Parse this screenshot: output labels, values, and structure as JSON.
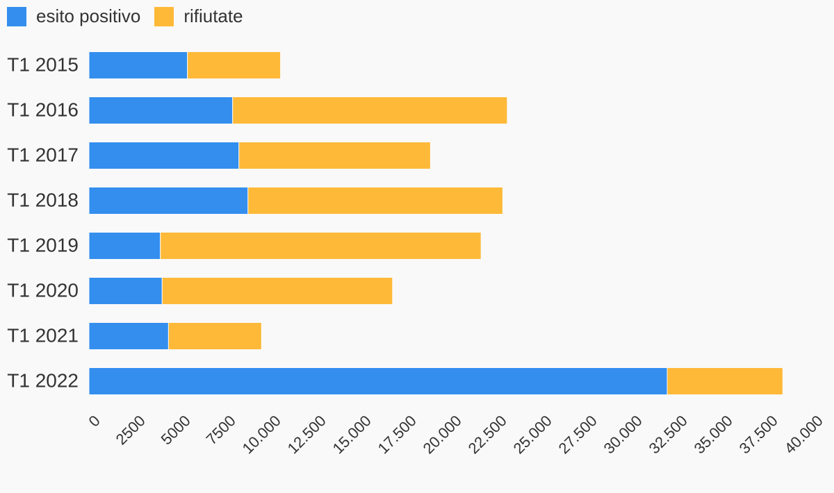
{
  "chart_data": {
    "type": "bar",
    "orientation": "horizontal",
    "stacked": true,
    "categories": [
      "T1 2015",
      "T1 2016",
      "T1 2017",
      "T1 2018",
      "T1 2019",
      "T1 2020",
      "T1 2021",
      "T1 2022"
    ],
    "series": [
      {
        "name": "esito positivo",
        "color": "#338eee",
        "values": [
          5450,
          7950,
          8300,
          8800,
          3950,
          4050,
          4400,
          32000
        ]
      },
      {
        "name": "rifiutate",
        "color": "#ffb938",
        "values": [
          5150,
          15200,
          10600,
          14100,
          17750,
          12750,
          5150,
          6400
        ]
      }
    ],
    "xlim": [
      0,
      40000
    ],
    "xticks": [
      "0",
      "2500",
      "5000",
      "7500",
      "10.000",
      "12.500",
      "15.000",
      "17.500",
      "20.000",
      "22.500",
      "25.000",
      "27.500",
      "30.000",
      "32.500",
      "35.000",
      "37.500",
      "40.000"
    ],
    "legend_position": "top-left",
    "grid": false
  }
}
